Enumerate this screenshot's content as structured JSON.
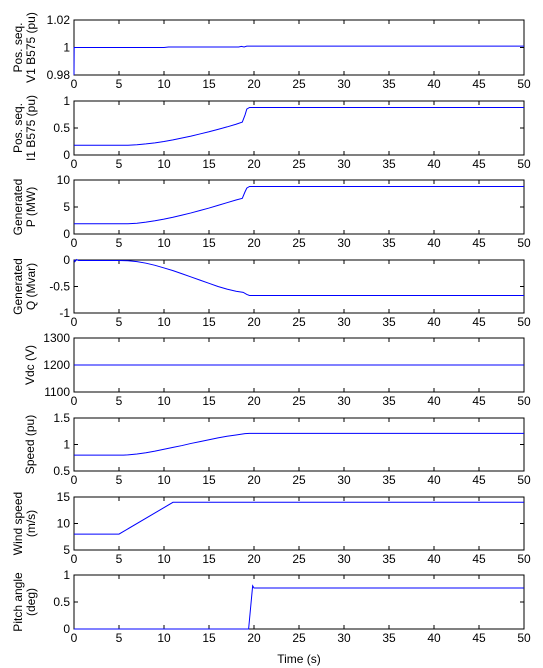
{
  "figure": {
    "xlabel": "Time (s)",
    "background": "#ffffff",
    "axis_color": "#000000",
    "line_color": "#0000ff"
  },
  "chart_data": [
    {
      "type": "line",
      "ylabel": [
        "Pos. seq.",
        "V1 B575 (pu)"
      ],
      "xlim": [
        0,
        50
      ],
      "ylim": [
        0.98,
        1.02
      ],
      "xticks": [
        0,
        5,
        10,
        15,
        20,
        25,
        30,
        35,
        40,
        45,
        50
      ],
      "yticks": [
        0.98,
        1,
        1.02
      ],
      "ytick_labels": [
        "0.98",
        "1",
        "1.02"
      ],
      "grid": false,
      "series": [
        {
          "x": [
            0,
            0.02,
            0.05,
            10,
            10.5,
            18.3,
            18.6,
            18.9,
            19.2,
            20,
            50
          ],
          "y": [
            0.98,
            1.0,
            1.0,
            1.0,
            1.0004,
            1.0004,
            1.0008,
            1.0004,
            1.001,
            1.001,
            1.001
          ]
        }
      ]
    },
    {
      "type": "line",
      "ylabel": [
        "Pos. seq.",
        "I1 B575 (pu)"
      ],
      "xlim": [
        0,
        50
      ],
      "ylim": [
        0,
        1
      ],
      "xticks": [
        0,
        5,
        10,
        15,
        20,
        25,
        30,
        35,
        40,
        45,
        50
      ],
      "yticks": [
        0,
        0.5,
        1
      ],
      "ytick_labels": [
        "0",
        "0.5",
        "1"
      ],
      "grid": false,
      "series": [
        {
          "x": [
            0,
            6,
            7,
            8,
            9,
            10,
            11,
            12,
            13,
            14,
            15,
            16,
            17,
            18,
            18.7,
            19.0,
            19.2,
            19.5,
            50
          ],
          "y": [
            0.18,
            0.18,
            0.19,
            0.205,
            0.225,
            0.25,
            0.28,
            0.315,
            0.35,
            0.39,
            0.43,
            0.475,
            0.52,
            0.57,
            0.61,
            0.74,
            0.85,
            0.88,
            0.88
          ]
        }
      ]
    },
    {
      "type": "line",
      "ylabel": [
        "Generated",
        "P (MW)"
      ],
      "xlim": [
        0,
        50
      ],
      "ylim": [
        0,
        10
      ],
      "xticks": [
        0,
        5,
        10,
        15,
        20,
        25,
        30,
        35,
        40,
        45,
        50
      ],
      "yticks": [
        0,
        5,
        10
      ],
      "ytick_labels": [
        "0",
        "5",
        "10"
      ],
      "grid": false,
      "series": [
        {
          "x": [
            0,
            6,
            7,
            8,
            9,
            10,
            11,
            12,
            13,
            14,
            15,
            16,
            17,
            18,
            18.7,
            19.0,
            19.2,
            19.5,
            50
          ],
          "y": [
            1.9,
            1.9,
            2.0,
            2.2,
            2.45,
            2.75,
            3.1,
            3.5,
            3.9,
            4.35,
            4.8,
            5.3,
            5.8,
            6.3,
            6.6,
            7.8,
            8.5,
            8.8,
            8.8
          ]
        }
      ]
    },
    {
      "type": "line",
      "ylabel": [
        "Generated",
        "Q (Mvar)"
      ],
      "xlim": [
        0,
        50
      ],
      "ylim": [
        -1,
        0
      ],
      "xticks": [
        0,
        5,
        10,
        15,
        20,
        25,
        30,
        35,
        40,
        45,
        50
      ],
      "yticks": [
        -1,
        -0.5,
        0
      ],
      "ytick_labels": [
        "-1",
        "-0.5",
        "0"
      ],
      "grid": false,
      "series": [
        {
          "x": [
            0,
            0.1,
            0.3,
            0.5,
            5,
            6,
            7,
            8,
            9,
            10,
            11,
            12,
            13,
            14,
            15,
            16,
            17,
            18,
            18.8,
            19.2,
            19.5,
            50
          ],
          "y": [
            0,
            -0.03,
            0.01,
            -0.01,
            -0.01,
            -0.015,
            -0.03,
            -0.06,
            -0.1,
            -0.15,
            -0.2,
            -0.26,
            -0.32,
            -0.38,
            -0.44,
            -0.5,
            -0.55,
            -0.59,
            -0.61,
            -0.65,
            -0.67,
            -0.67
          ]
        }
      ]
    },
    {
      "type": "line",
      "ylabel": [
        "Vdc (V)"
      ],
      "xlim": [
        0,
        50
      ],
      "ylim": [
        1100,
        1300
      ],
      "xticks": [
        0,
        5,
        10,
        15,
        20,
        25,
        30,
        35,
        40,
        45,
        50
      ],
      "yticks": [
        1100,
        1200,
        1300
      ],
      "ytick_labels": [
        "1100",
        "1200",
        "1300"
      ],
      "grid": false,
      "series": [
        {
          "x": [
            0,
            50
          ],
          "y": [
            1200,
            1200
          ]
        }
      ]
    },
    {
      "type": "line",
      "ylabel": [
        "Speed (pu)"
      ],
      "xlim": [
        0,
        50
      ],
      "ylim": [
        0.5,
        1.5
      ],
      "xticks": [
        0,
        5,
        10,
        15,
        20,
        25,
        30,
        35,
        40,
        45,
        50
      ],
      "yticks": [
        0.5,
        1,
        1.5
      ],
      "ytick_labels": [
        "0.5",
        "1",
        "1.5"
      ],
      "grid": false,
      "series": [
        {
          "x": [
            0,
            5.5,
            6,
            7,
            8,
            9,
            10,
            11,
            12,
            13,
            14,
            15,
            16,
            17,
            18,
            19,
            19.5,
            50
          ],
          "y": [
            0.8,
            0.8,
            0.805,
            0.82,
            0.845,
            0.875,
            0.91,
            0.945,
            0.98,
            1.02,
            1.055,
            1.09,
            1.125,
            1.155,
            1.18,
            1.205,
            1.21,
            1.21
          ]
        }
      ]
    },
    {
      "type": "line",
      "ylabel": [
        "Wind speed",
        "(m/s)"
      ],
      "xlim": [
        0,
        50
      ],
      "ylim": [
        5,
        15
      ],
      "xticks": [
        0,
        5,
        10,
        15,
        20,
        25,
        30,
        35,
        40,
        45,
        50
      ],
      "yticks": [
        5,
        10,
        15
      ],
      "ytick_labels": [
        "5",
        "10",
        "15"
      ],
      "grid": false,
      "series": [
        {
          "x": [
            0,
            5,
            11,
            50
          ],
          "y": [
            8,
            8,
            14,
            14
          ]
        }
      ]
    },
    {
      "type": "line",
      "ylabel": [
        "Pitch angle",
        "(deg)"
      ],
      "xlim": [
        0,
        50
      ],
      "ylim": [
        0,
        1
      ],
      "xticks": [
        0,
        5,
        10,
        15,
        20,
        25,
        30,
        35,
        40,
        45,
        50
      ],
      "yticks": [
        0,
        0.5,
        1
      ],
      "ytick_labels": [
        "0",
        "0.5",
        "1"
      ],
      "grid": false,
      "series": [
        {
          "x": [
            0,
            19.4,
            19.85,
            20.0,
            20.3,
            50
          ],
          "y": [
            0,
            0,
            0.8,
            0.76,
            0.76,
            0.76
          ]
        }
      ]
    }
  ]
}
